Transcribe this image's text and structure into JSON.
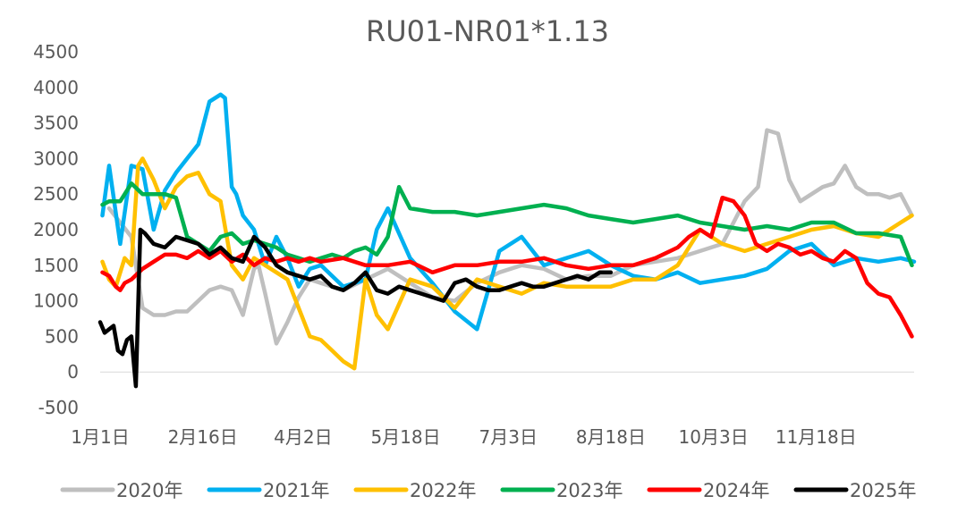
{
  "chart_data": {
    "type": "line",
    "title": "RU01-NR01*1.13",
    "xlabel": "",
    "ylabel": "",
    "ylim": [
      -500,
      4500
    ],
    "yticks": [
      -500,
      0,
      500,
      1000,
      1500,
      2000,
      2500,
      3000,
      3500,
      4000,
      4500
    ],
    "x_tick_labels": [
      "1月1日",
      "2月16日",
      "4月2日",
      "5月18日",
      "7月3日",
      "8月18日",
      "10月3日",
      "11月18日"
    ],
    "x_tick_days": [
      1,
      47,
      92,
      138,
      184,
      230,
      276,
      322
    ],
    "x_range_days": [
      1,
      366
    ],
    "grid": false,
    "legend": "bottom",
    "series": [
      {
        "name": "2020年",
        "color": "#BFBFBF",
        "x": [
          5,
          10,
          15,
          20,
          25,
          30,
          35,
          40,
          45,
          50,
          55,
          60,
          65,
          70,
          72,
          75,
          80,
          85,
          90,
          95,
          100,
          110,
          120,
          130,
          140,
          150,
          160,
          170,
          180,
          190,
          200,
          210,
          220,
          230,
          240,
          250,
          260,
          270,
          280,
          290,
          296,
          300,
          305,
          310,
          315,
          320,
          325,
          330,
          335,
          340,
          345,
          350,
          355,
          360,
          365
        ],
        "y": [
          2300,
          2100,
          1900,
          900,
          800,
          800,
          850,
          850,
          1000,
          1150,
          1200,
          1150,
          800,
          1450,
          1500,
          1100,
          400,
          700,
          1050,
          1300,
          1250,
          1150,
          1300,
          1450,
          1250,
          1050,
          1000,
          1250,
          1400,
          1500,
          1450,
          1300,
          1350,
          1350,
          1500,
          1550,
          1600,
          1700,
          1800,
          2400,
          2600,
          3400,
          3350,
          2700,
          2400,
          2500,
          2600,
          2650,
          2900,
          2600,
          2500,
          2500,
          2450,
          2500,
          2200
        ]
      },
      {
        "name": "2021年",
        "color": "#00B0F0",
        "x": [
          2,
          5,
          10,
          15,
          20,
          25,
          30,
          35,
          40,
          45,
          50,
          55,
          57,
          60,
          62,
          65,
          70,
          75,
          80,
          85,
          90,
          95,
          100,
          110,
          120,
          125,
          130,
          140,
          150,
          160,
          170,
          180,
          190,
          200,
          210,
          220,
          230,
          240,
          250,
          260,
          270,
          280,
          290,
          300,
          310,
          320,
          330,
          340,
          350,
          360,
          366
        ],
        "y": [
          2200,
          2900,
          1800,
          2900,
          2850,
          2000,
          2550,
          2800,
          3000,
          3200,
          3800,
          3900,
          3850,
          2600,
          2500,
          2200,
          2000,
          1500,
          1900,
          1600,
          1200,
          1450,
          1500,
          1200,
          1300,
          2000,
          2300,
          1600,
          1250,
          850,
          600,
          1700,
          1900,
          1500,
          1600,
          1700,
          1500,
          1350,
          1300,
          1400,
          1250,
          1300,
          1350,
          1450,
          1700,
          1800,
          1500,
          1600,
          1550,
          1600,
          1550
        ]
      },
      {
        "name": "2022年",
        "color": "#FFC000",
        "x": [
          2,
          5,
          8,
          12,
          15,
          18,
          20,
          25,
          30,
          35,
          40,
          45,
          50,
          55,
          60,
          65,
          70,
          75,
          80,
          85,
          90,
          95,
          100,
          105,
          110,
          115,
          120,
          125,
          130,
          140,
          150,
          160,
          170,
          180,
          190,
          200,
          210,
          220,
          230,
          240,
          250,
          260,
          270,
          280,
          290,
          300,
          310,
          320,
          330,
          340,
          350,
          360,
          365
        ],
        "y": [
          1550,
          1300,
          1200,
          1600,
          1500,
          2900,
          3000,
          2700,
          2300,
          2600,
          2750,
          2800,
          2500,
          2400,
          1500,
          1300,
          1600,
          1500,
          1400,
          1300,
          900,
          500,
          450,
          300,
          150,
          50,
          1300,
          800,
          600,
          1300,
          1200,
          900,
          1300,
          1200,
          1100,
          1250,
          1200,
          1200,
          1200,
          1300,
          1300,
          1500,
          2000,
          1800,
          1700,
          1800,
          1900,
          2000,
          2050,
          1950,
          1900,
          2100,
          2200
        ]
      },
      {
        "name": "2023年",
        "color": "#00B050",
        "x": [
          2,
          5,
          10,
          15,
          20,
          25,
          30,
          35,
          40,
          45,
          50,
          55,
          60,
          65,
          70,
          75,
          80,
          85,
          90,
          95,
          100,
          105,
          110,
          115,
          120,
          125,
          130,
          135,
          140,
          150,
          160,
          170,
          180,
          190,
          200,
          210,
          220,
          230,
          240,
          250,
          260,
          270,
          280,
          290,
          300,
          310,
          320,
          330,
          340,
          350,
          360,
          365
        ],
        "y": [
          2350,
          2400,
          2400,
          2650,
          2500,
          2500,
          2500,
          2450,
          1900,
          1800,
          1700,
          1900,
          1950,
          1800,
          1850,
          1800,
          1750,
          1650,
          1600,
          1550,
          1600,
          1650,
          1600,
          1700,
          1750,
          1650,
          1900,
          2600,
          2300,
          2250,
          2250,
          2200,
          2250,
          2300,
          2350,
          2300,
          2200,
          2150,
          2100,
          2150,
          2200,
          2100,
          2050,
          2000,
          2050,
          2000,
          2100,
          2100,
          1950,
          1950,
          1900,
          1500
        ]
      },
      {
        "name": "2024年",
        "color": "#FF0000",
        "x": [
          2,
          5,
          8,
          10,
          12,
          15,
          20,
          25,
          30,
          35,
          40,
          45,
          50,
          55,
          60,
          65,
          70,
          75,
          80,
          85,
          90,
          95,
          100,
          110,
          120,
          130,
          140,
          150,
          160,
          170,
          180,
          190,
          200,
          210,
          220,
          230,
          240,
          250,
          260,
          265,
          270,
          275,
          280,
          285,
          290,
          295,
          300,
          305,
          310,
          315,
          320,
          325,
          330,
          335,
          340,
          345,
          350,
          355,
          360,
          365
        ],
        "y": [
          1400,
          1350,
          1200,
          1150,
          1250,
          1300,
          1450,
          1550,
          1650,
          1650,
          1600,
          1700,
          1600,
          1700,
          1550,
          1650,
          1500,
          1600,
          1550,
          1600,
          1550,
          1600,
          1550,
          1600,
          1500,
          1500,
          1550,
          1400,
          1500,
          1500,
          1550,
          1550,
          1600,
          1500,
          1450,
          1500,
          1500,
          1600,
          1750,
          1900,
          2000,
          1900,
          2450,
          2400,
          2200,
          1800,
          1700,
          1800,
          1750,
          1650,
          1700,
          1600,
          1550,
          1700,
          1600,
          1250,
          1100,
          1050,
          800,
          500
        ]
      },
      {
        "name": "2025年",
        "color": "#000000",
        "x": [
          1,
          3,
          5,
          7,
          9,
          11,
          13,
          15,
          17,
          19,
          21,
          25,
          30,
          35,
          40,
          45,
          50,
          55,
          60,
          65,
          70,
          75,
          80,
          85,
          90,
          95,
          100,
          105,
          110,
          115,
          120,
          125,
          130,
          135,
          140,
          145,
          150,
          155,
          160,
          165,
          170,
          175,
          180,
          185,
          190,
          195,
          200,
          205,
          210,
          215,
          220,
          225,
          230
        ],
        "y": [
          700,
          550,
          600,
          650,
          300,
          250,
          450,
          500,
          -200,
          2000,
          1950,
          1800,
          1750,
          1900,
          1850,
          1800,
          1650,
          1750,
          1600,
          1550,
          1900,
          1750,
          1500,
          1400,
          1350,
          1300,
          1350,
          1200,
          1150,
          1250,
          1400,
          1150,
          1100,
          1200,
          1150,
          1100,
          1050,
          1000,
          1250,
          1300,
          1200,
          1150,
          1150,
          1200,
          1250,
          1200,
          1200,
          1250,
          1300,
          1350,
          1300,
          1400,
          1400
        ]
      }
    ]
  }
}
